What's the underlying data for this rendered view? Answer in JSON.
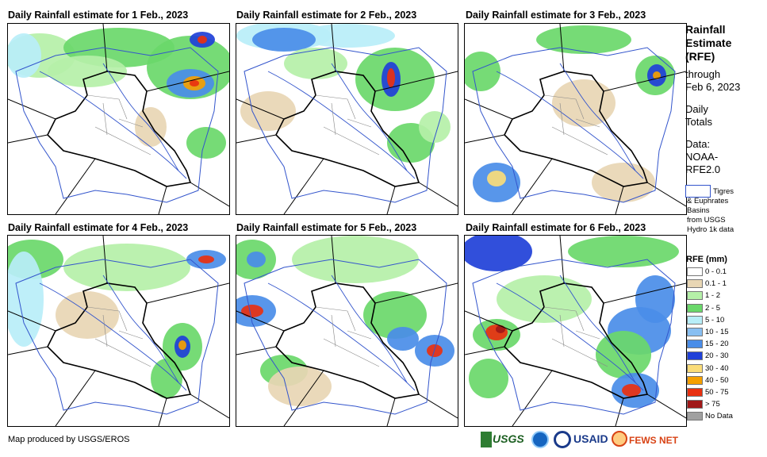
{
  "panels": [
    {
      "title": "Daily Rainfall estimate for 1 Feb., 2023"
    },
    {
      "title": "Daily Rainfall estimate for 2 Feb., 2023"
    },
    {
      "title": "Daily Rainfall estimate for 3 Feb., 2023"
    },
    {
      "title": "Daily Rainfall estimate for 4 Feb., 2023"
    },
    {
      "title": "Daily Rainfall estimate for 5 Feb., 2023"
    },
    {
      "title": "Daily Rainfall estimate for 6 Feb., 2023"
    }
  ],
  "side": {
    "title_lines": [
      "Rainfall",
      "Estimate",
      "(RFE)"
    ],
    "through": "through",
    "date": "Feb 6, 2023",
    "daily": "Daily",
    "totals": "Totals",
    "data_label": "Data:",
    "data_src1": "NOAA-",
    "data_src2": "RFE2.0",
    "basins_lines": [
      "Tigres",
      "& Euphrates",
      "Basins",
      "from USGS",
      "Hydro 1k data"
    ]
  },
  "legend": {
    "title": "RFE (mm)",
    "items": [
      {
        "label": "0 - 0.1",
        "color": "#ffffff"
      },
      {
        "label": "0.1 - 1",
        "color": "#e8d6b4"
      },
      {
        "label": "1 - 2",
        "color": "#b5f0a8"
      },
      {
        "label": "2 - 5",
        "color": "#6ad86a"
      },
      {
        "label": "5 - 10",
        "color": "#b8eef8"
      },
      {
        "label": "10 - 15",
        "color": "#88bff2"
      },
      {
        "label": "15 - 20",
        "color": "#4a8de8"
      },
      {
        "label": "20 - 30",
        "color": "#2040d8"
      },
      {
        "label": "30 - 40",
        "color": "#fadc78"
      },
      {
        "label": "40 - 50",
        "color": "#f5a000"
      },
      {
        "label": "50 - 75",
        "color": "#e83010"
      },
      {
        "label": "> 75",
        "color": "#a01818"
      },
      {
        "label": "No Data",
        "color": "#a0a0a0"
      }
    ]
  },
  "credit": "Map produced by USGS/EROS",
  "logos": {
    "usgs": "USGS",
    "usaid": "USAID",
    "fewsnet": "FEWS NET"
  }
}
